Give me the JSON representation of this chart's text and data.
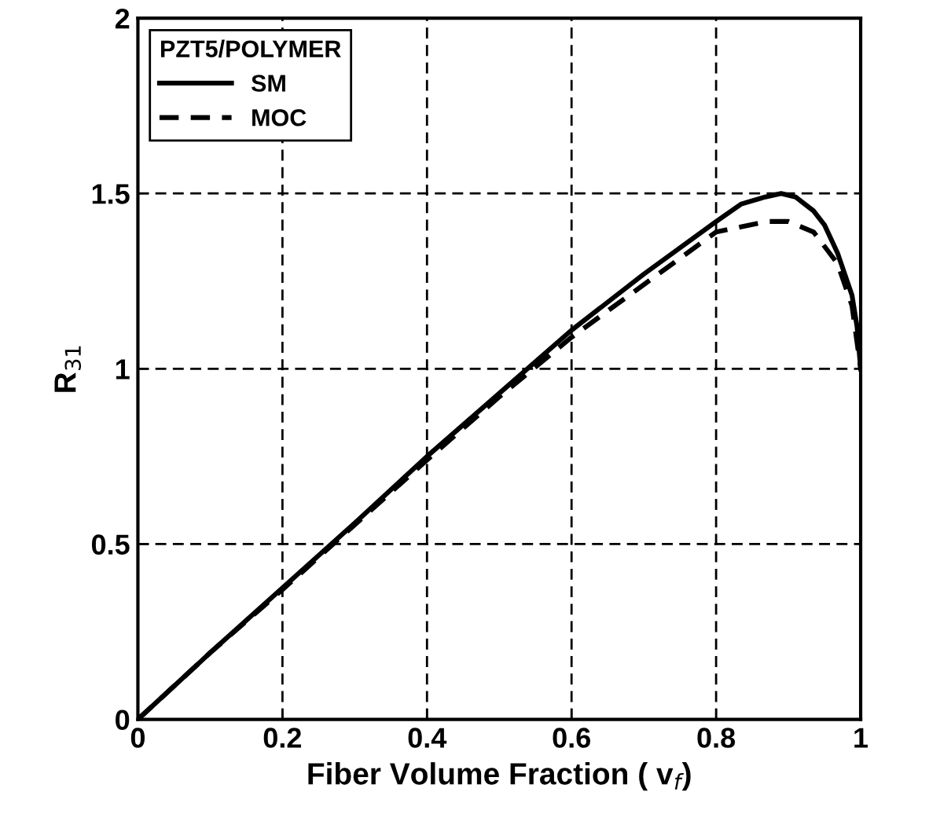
{
  "chart_data": {
    "type": "line",
    "xlabel": "Fiber Volume Fraction ( v$_{f}$)",
    "ylabel": "R$_{31}$",
    "legend_title": "PZT5/POLYMER",
    "legend": "top left",
    "grid": true,
    "xlim": [
      0,
      1
    ],
    "ylim": [
      0,
      2
    ],
    "xticks": [
      0,
      0.2,
      0.4,
      0.6,
      0.8,
      1
    ],
    "yticks": [
      0,
      0.5,
      1,
      1.5,
      2
    ],
    "series": [
      {
        "name": "SM",
        "color": "#000000",
        "line_style": "solid",
        "x": [
          0,
          0.1,
          0.2,
          0.3,
          0.4,
          0.5,
          0.6,
          0.7,
          0.8,
          0.835,
          0.868,
          0.89,
          0.91,
          0.935,
          0.95,
          0.968,
          0.988,
          0.995,
          1.0
        ],
        "values": [
          0,
          0.19,
          0.375,
          0.56,
          0.75,
          0.93,
          1.11,
          1.27,
          1.42,
          1.47,
          1.49,
          1.5,
          1.49,
          1.45,
          1.41,
          1.33,
          1.21,
          1.12,
          1.0
        ]
      },
      {
        "name": "MOC",
        "color": "#000000",
        "line_style": "dashed",
        "x": [
          0,
          0.1,
          0.2,
          0.3,
          0.4,
          0.5,
          0.6,
          0.7,
          0.8,
          0.87,
          0.9,
          0.935,
          0.968,
          0.988,
          1.0
        ],
        "values": [
          0,
          0.19,
          0.37,
          0.555,
          0.74,
          0.92,
          1.09,
          1.24,
          1.39,
          1.42,
          1.42,
          1.39,
          1.3,
          1.18,
          1.0
        ]
      }
    ]
  }
}
